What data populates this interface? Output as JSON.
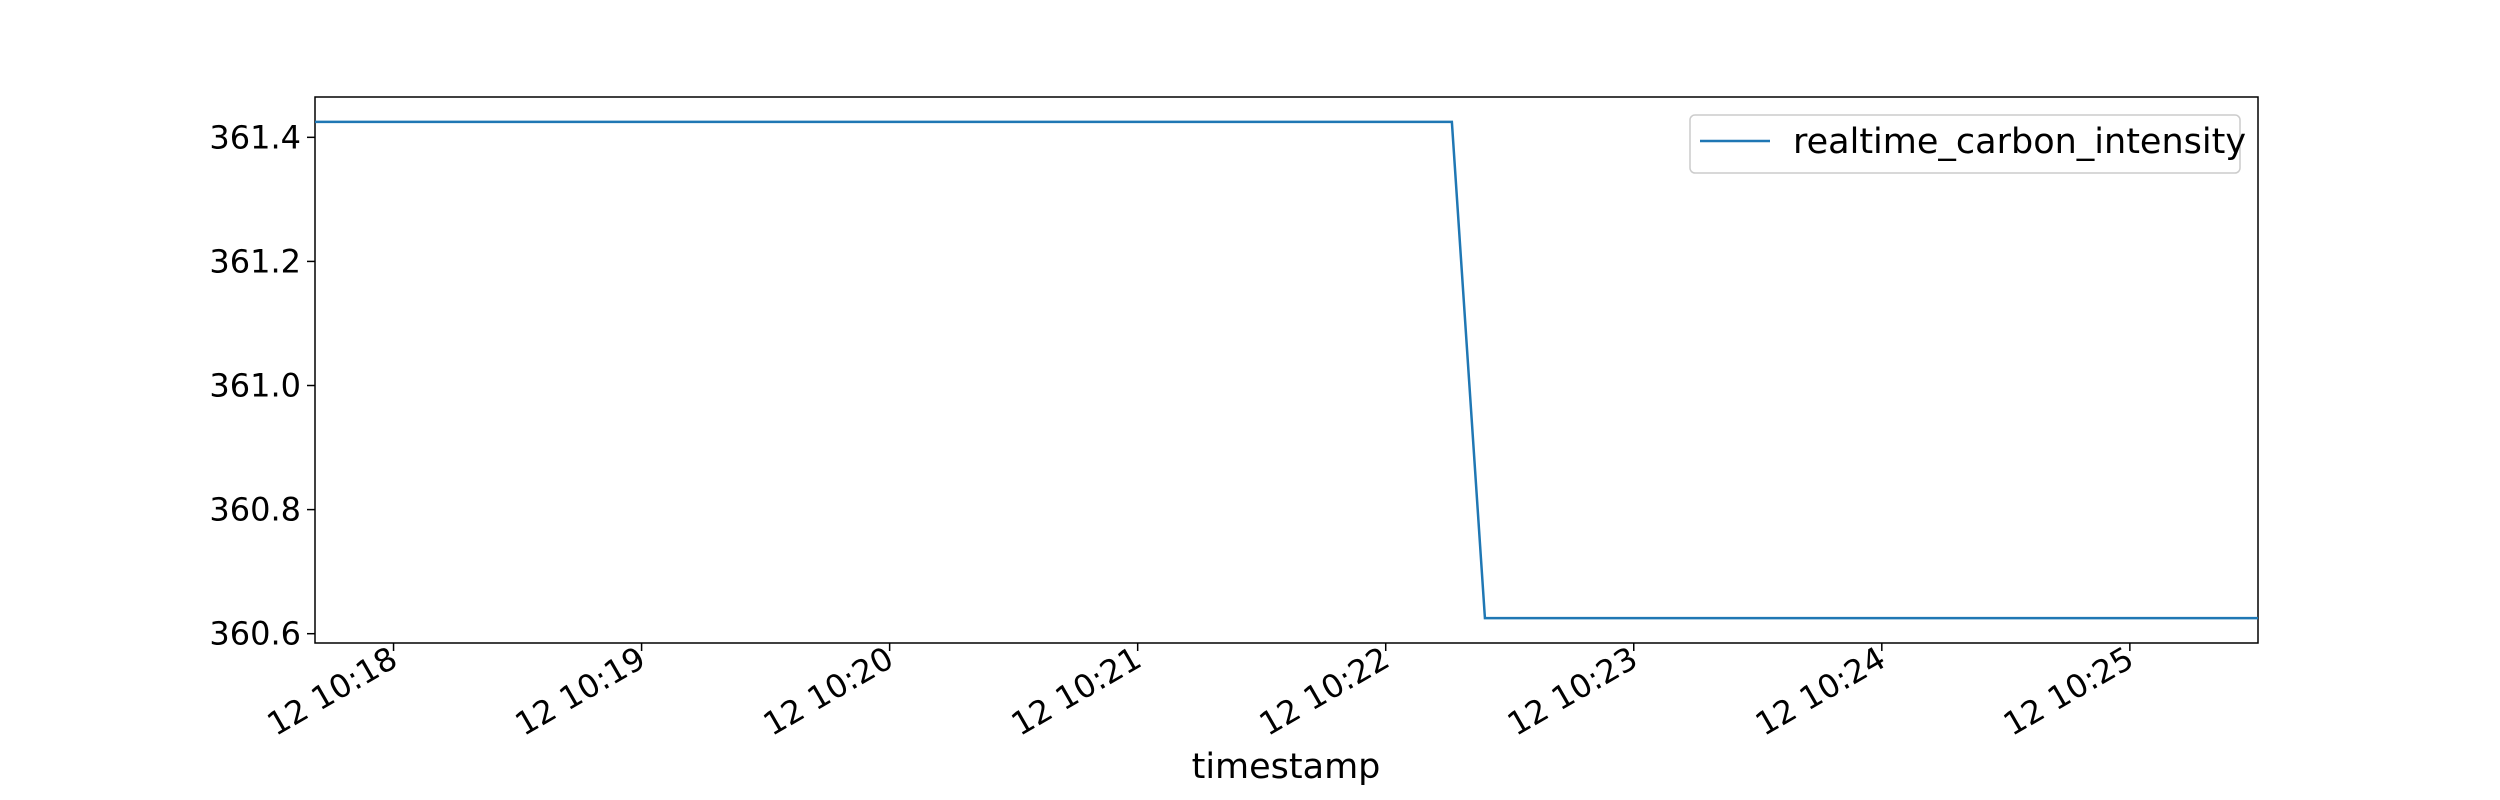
{
  "chart_data": {
    "type": "line",
    "title": "",
    "xlabel": "timestamp",
    "ylabel": "",
    "grid": false,
    "legend_position": "top-right",
    "xlim": [
      "12 10:17:41",
      "12 10:25:31"
    ],
    "ylim": [
      360.585,
      361.465
    ],
    "x_ticks": [
      "12 10:18",
      "12 10:19",
      "12 10:20",
      "12 10:21",
      "12 10:22",
      "12 10:23",
      "12 10:24",
      "12 10:25"
    ],
    "y_ticks": [
      "360.6",
      "360.8",
      "361.0",
      "361.2",
      "361.4"
    ],
    "series": [
      {
        "name": "realtime_carbon_intensity",
        "color": "#1f77b4",
        "x": [
          "12 10:17:41",
          "12 10:22:16",
          "12 10:22:24",
          "12 10:25:31"
        ],
        "y": [
          361.425,
          361.425,
          360.625,
          360.625
        ]
      }
    ]
  }
}
